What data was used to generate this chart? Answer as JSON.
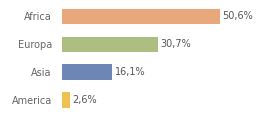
{
  "categories": [
    "America",
    "Asia",
    "Europa",
    "Africa"
  ],
  "values": [
    2.6,
    16.1,
    30.7,
    50.6
  ],
  "labels": [
    "2,6%",
    "16,1%",
    "30,7%",
    "50,6%"
  ],
  "bar_colors": [
    "#f0c050",
    "#6e86b5",
    "#adbf80",
    "#e8a87c"
  ],
  "background_color": "#ffffff",
  "xlim": [
    0,
    68
  ],
  "label_fontsize": 7,
  "category_fontsize": 7,
  "bar_height": 0.55
}
